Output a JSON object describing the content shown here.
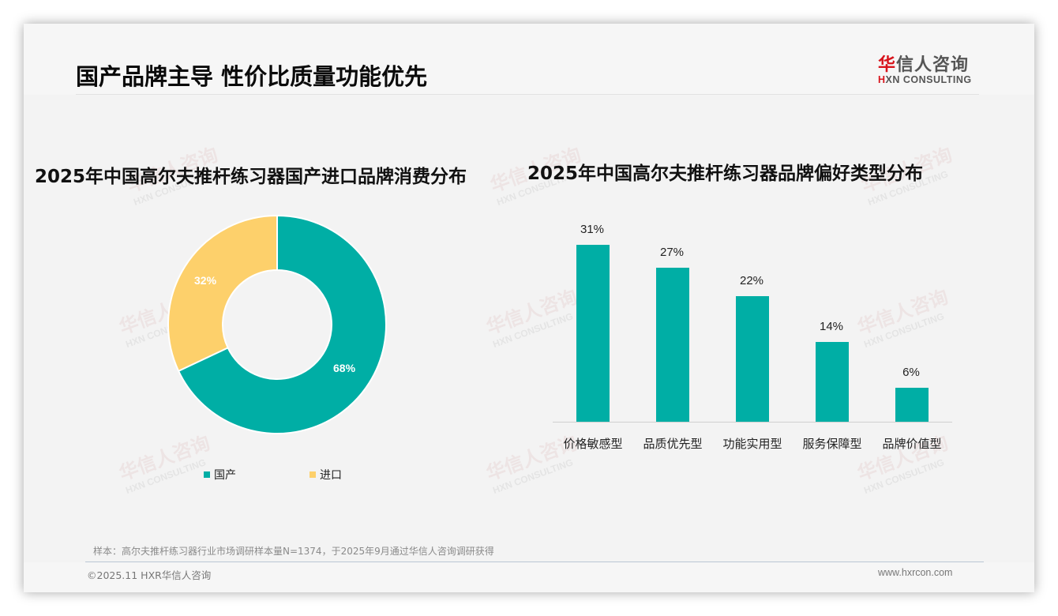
{
  "header": {
    "title": "国产品牌主导 性价比质量功能优先",
    "logo_cn_red": "华",
    "logo_cn_rest": "信人咨询",
    "logo_en_red": "H",
    "logo_en_rest": "XN CONSULTING"
  },
  "watermark": {
    "cn": "华信人咨询",
    "en": "HXN CONSULTING"
  },
  "left_chart": {
    "title": "2025年中国高尔夫推杆练习器国产进口品牌消费分布",
    "slices": [
      {
        "label": "国产",
        "value": 68,
        "display": "68%",
        "color": "#00aea5"
      },
      {
        "label": "进口",
        "value": 32,
        "display": "32%",
        "color": "#fdd06b"
      }
    ]
  },
  "right_chart": {
    "title": "2025年中国高尔夫推杆练习器品牌偏好类型分布",
    "bars": [
      {
        "category": "价格敏感型",
        "value": 31,
        "display": "31%"
      },
      {
        "category": "品质优先型",
        "value": 27,
        "display": "27%"
      },
      {
        "category": "功能实用型",
        "value": 22,
        "display": "22%"
      },
      {
        "category": "服务保障型",
        "value": 14,
        "display": "14%"
      },
      {
        "category": "品牌价值型",
        "value": 6,
        "display": "6%"
      }
    ],
    "color": "#00aea5"
  },
  "chart_data": [
    {
      "type": "pie",
      "title": "2025年中国高尔夫推杆练习器国产进口品牌消费分布",
      "categories": [
        "国产",
        "进口"
      ],
      "values": [
        68,
        32
      ],
      "unit": "%",
      "donut": true,
      "legend_position": "bottom",
      "colors": [
        "#00aea5",
        "#fdd06b"
      ]
    },
    {
      "type": "bar",
      "title": "2025年中国高尔夫推杆练习器品牌偏好类型分布",
      "categories": [
        "价格敏感型",
        "品质优先型",
        "功能实用型",
        "服务保障型",
        "品牌价值型"
      ],
      "values": [
        31,
        27,
        22,
        14,
        6
      ],
      "unit": "%",
      "xlabel": "",
      "ylabel": "",
      "grid": false,
      "data_labels": true,
      "color": "#00aea5"
    }
  ],
  "footer": {
    "note": "样本：高尔夫推杆练习器行业市场调研样本量N=1374，于2025年9月通过华信人咨询调研获得",
    "copyright": "©2025.11 HXR华信人咨询",
    "website": "www.hxrcon.com"
  }
}
